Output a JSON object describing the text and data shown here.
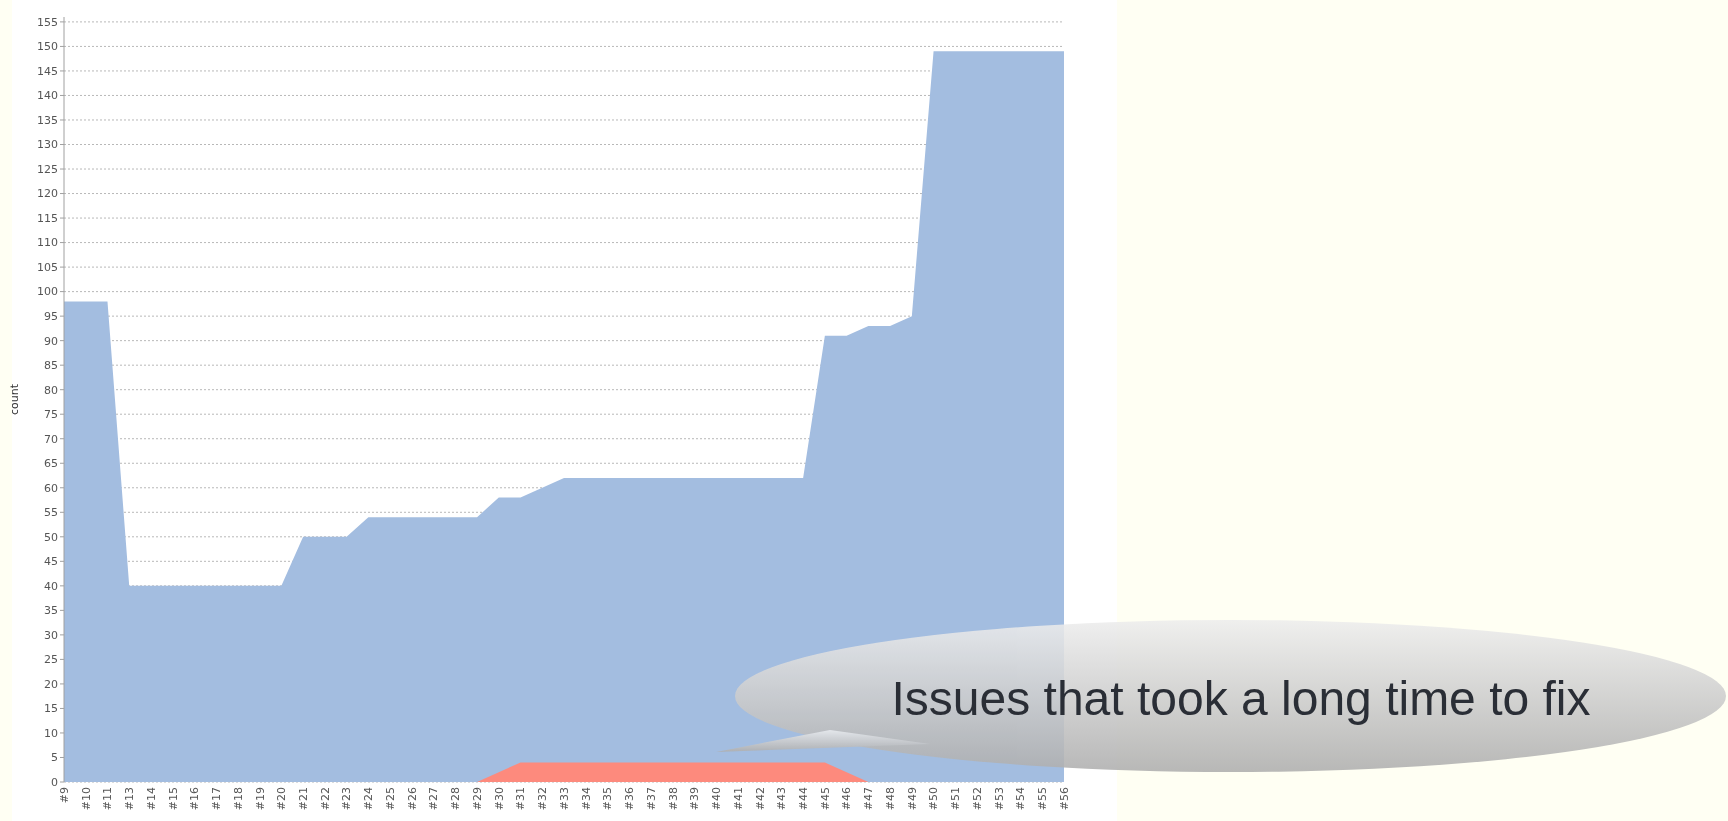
{
  "chart_data": {
    "type": "area",
    "ylabel": "count",
    "categories": [
      "#9",
      "#10",
      "#11",
      "#13",
      "#14",
      "#15",
      "#16",
      "#17",
      "#18",
      "#19",
      "#20",
      "#21",
      "#22",
      "#23",
      "#24",
      "#25",
      "#26",
      "#27",
      "#28",
      "#29",
      "#30",
      "#31",
      "#32",
      "#33",
      "#34",
      "#35",
      "#36",
      "#37",
      "#38",
      "#39",
      "#40",
      "#41",
      "#42",
      "#43",
      "#44",
      "#45",
      "#46",
      "#47",
      "#48",
      "#49",
      "#50",
      "#51",
      "#52",
      "#53",
      "#54",
      "#55",
      "#56"
    ],
    "series": [
      {
        "color": "#a3bde0",
        "values": [
          98,
          98,
          98,
          40,
          40,
          40,
          40,
          40,
          40,
          40,
          40,
          50,
          50,
          50,
          54,
          54,
          54,
          54,
          54,
          54,
          58,
          58,
          60,
          62,
          62,
          62,
          62,
          62,
          62,
          62,
          62,
          62,
          62,
          62,
          62,
          91,
          91,
          93,
          93,
          95,
          149,
          149,
          149,
          149,
          149,
          149,
          149
        ]
      },
      {
        "color": "#fd8a7d",
        "values": [
          null,
          null,
          null,
          null,
          null,
          null,
          null,
          null,
          null,
          null,
          null,
          null,
          null,
          null,
          null,
          null,
          null,
          null,
          null,
          0,
          2,
          4,
          4,
          4,
          4,
          4,
          4,
          4,
          4,
          4,
          4,
          4,
          4,
          4,
          4,
          4,
          2,
          0,
          null,
          null,
          null,
          null,
          null,
          null,
          null,
          null,
          null
        ]
      }
    ],
    "ylim": [
      0,
      156
    ],
    "yticks": [
      0,
      5,
      10,
      15,
      20,
      25,
      30,
      35,
      40,
      45,
      50,
      55,
      60,
      65,
      70,
      75,
      80,
      85,
      90,
      95,
      100,
      105,
      110,
      115,
      120,
      125,
      130,
      135,
      140,
      145,
      150,
      155
    ],
    "grid": "y",
    "annotations": [
      "Issues that took a long time to fix"
    ]
  }
}
